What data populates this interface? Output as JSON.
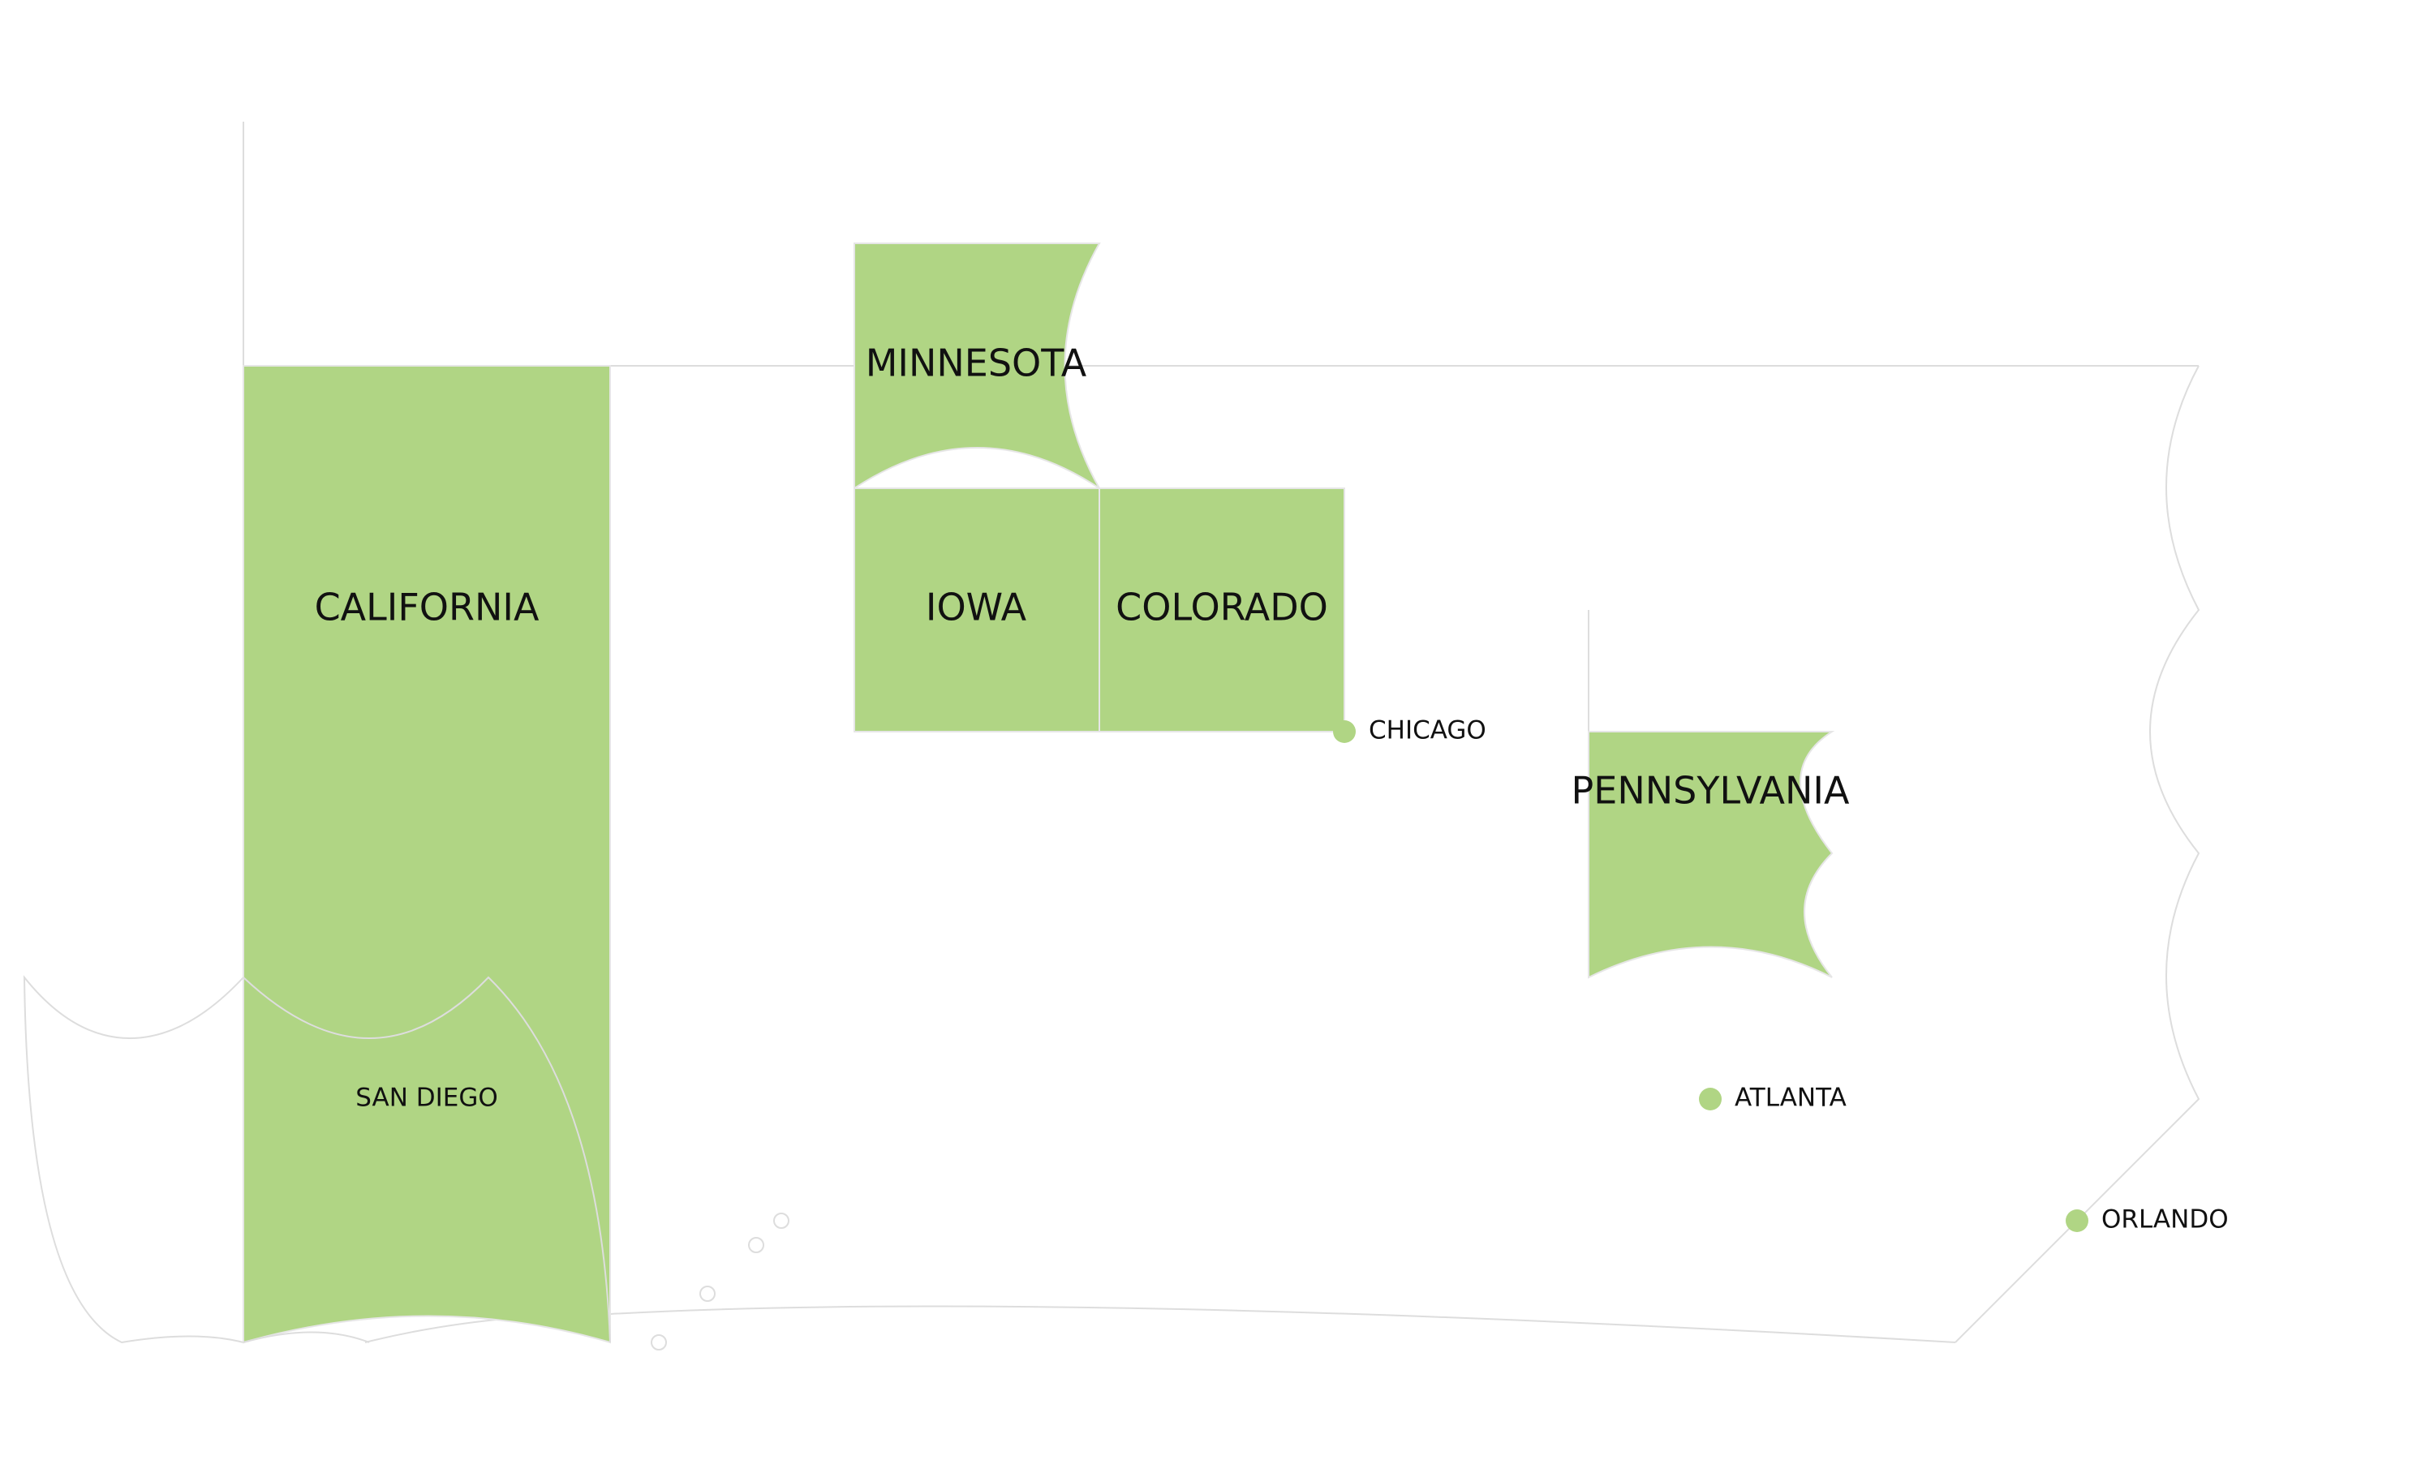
{
  "map": {
    "highlight_color": "#b0d584",
    "outline_color": "#dddddd",
    "regions": [
      {
        "id": "california",
        "label": "CALIFORNIA"
      },
      {
        "id": "minnesota",
        "label": "MINNESOTA"
      },
      {
        "id": "iowa",
        "label": "IOWA"
      },
      {
        "id": "colorado",
        "label": "COLORADO"
      },
      {
        "id": "pennsylvania",
        "label": "PENNSYLVANIA"
      }
    ],
    "area_labels": [
      {
        "id": "san-diego",
        "label": "SAN DIEGO"
      }
    ],
    "cities": [
      {
        "id": "chicago",
        "label": "CHICAGO"
      },
      {
        "id": "atlanta",
        "label": "ATLANTA"
      },
      {
        "id": "orlando",
        "label": "ORLANDO"
      }
    ]
  }
}
